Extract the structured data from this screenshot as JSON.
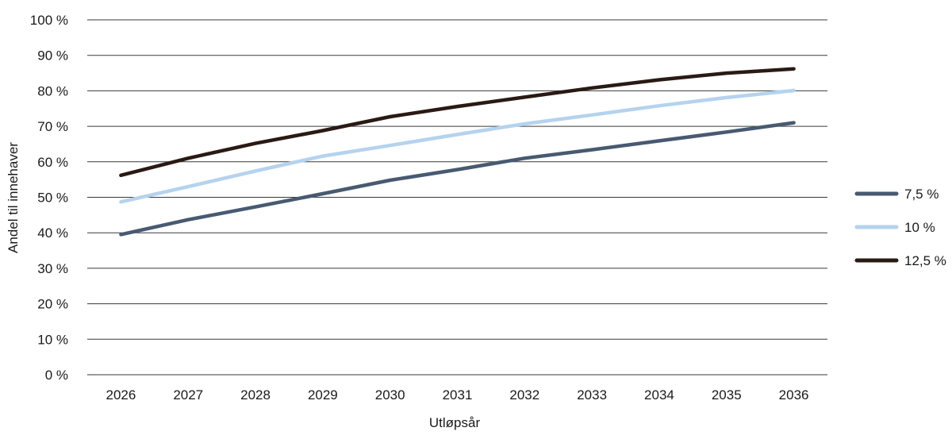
{
  "chart_data": {
    "type": "line",
    "title": "",
    "xlabel": "Utløpsår",
    "ylabel": "Andel til innehaver",
    "x": [
      "2026",
      "2027",
      "2028",
      "2029",
      "2030",
      "2031",
      "2032",
      "2033",
      "2034",
      "2035",
      "2036"
    ],
    "y_ticks": [
      "0 %",
      "10 %",
      "20 %",
      "30 %",
      "40 %",
      "50 %",
      "60 %",
      "70 %",
      "80 %",
      "90 %",
      "100 %"
    ],
    "ylim": [
      0,
      100
    ],
    "grid": true,
    "legend_position": "right",
    "series": [
      {
        "name": "7,5 %",
        "color": "#475a71",
        "values": [
          39.5,
          43.7,
          47.3,
          51.0,
          54.8,
          57.8,
          61.0,
          63.4,
          65.9,
          68.4,
          71.0
        ]
      },
      {
        "name": "10 %",
        "color": "#b5d3ee",
        "values": [
          48.7,
          53.0,
          57.4,
          61.6,
          64.6,
          67.7,
          70.7,
          73.2,
          75.8,
          78.1,
          80.1
        ]
      },
      {
        "name": "12,5 %",
        "color": "#2a1a14",
        "values": [
          56.2,
          61.0,
          65.2,
          68.8,
          72.7,
          75.6,
          78.2,
          80.8,
          83.1,
          85.0,
          86.2
        ]
      }
    ]
  }
}
